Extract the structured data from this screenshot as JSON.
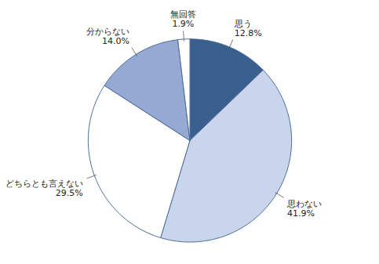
{
  "chart_data": {
    "type": "pie",
    "categories": [
      "思う",
      "思わない",
      "どちらとも言えない",
      "分からない",
      "無回答"
    ],
    "values": [
      12.8,
      41.9,
      29.5,
      14.0,
      1.9
    ],
    "value_labels": [
      "12.8%",
      "41.9%",
      "29.5%",
      "14.0%",
      "1.9%"
    ],
    "colors": [
      "#3a5f8f",
      "#c9d5ea",
      "#ffffff",
      "#95a9d2",
      "#ffffff"
    ],
    "data_labels": true
  }
}
